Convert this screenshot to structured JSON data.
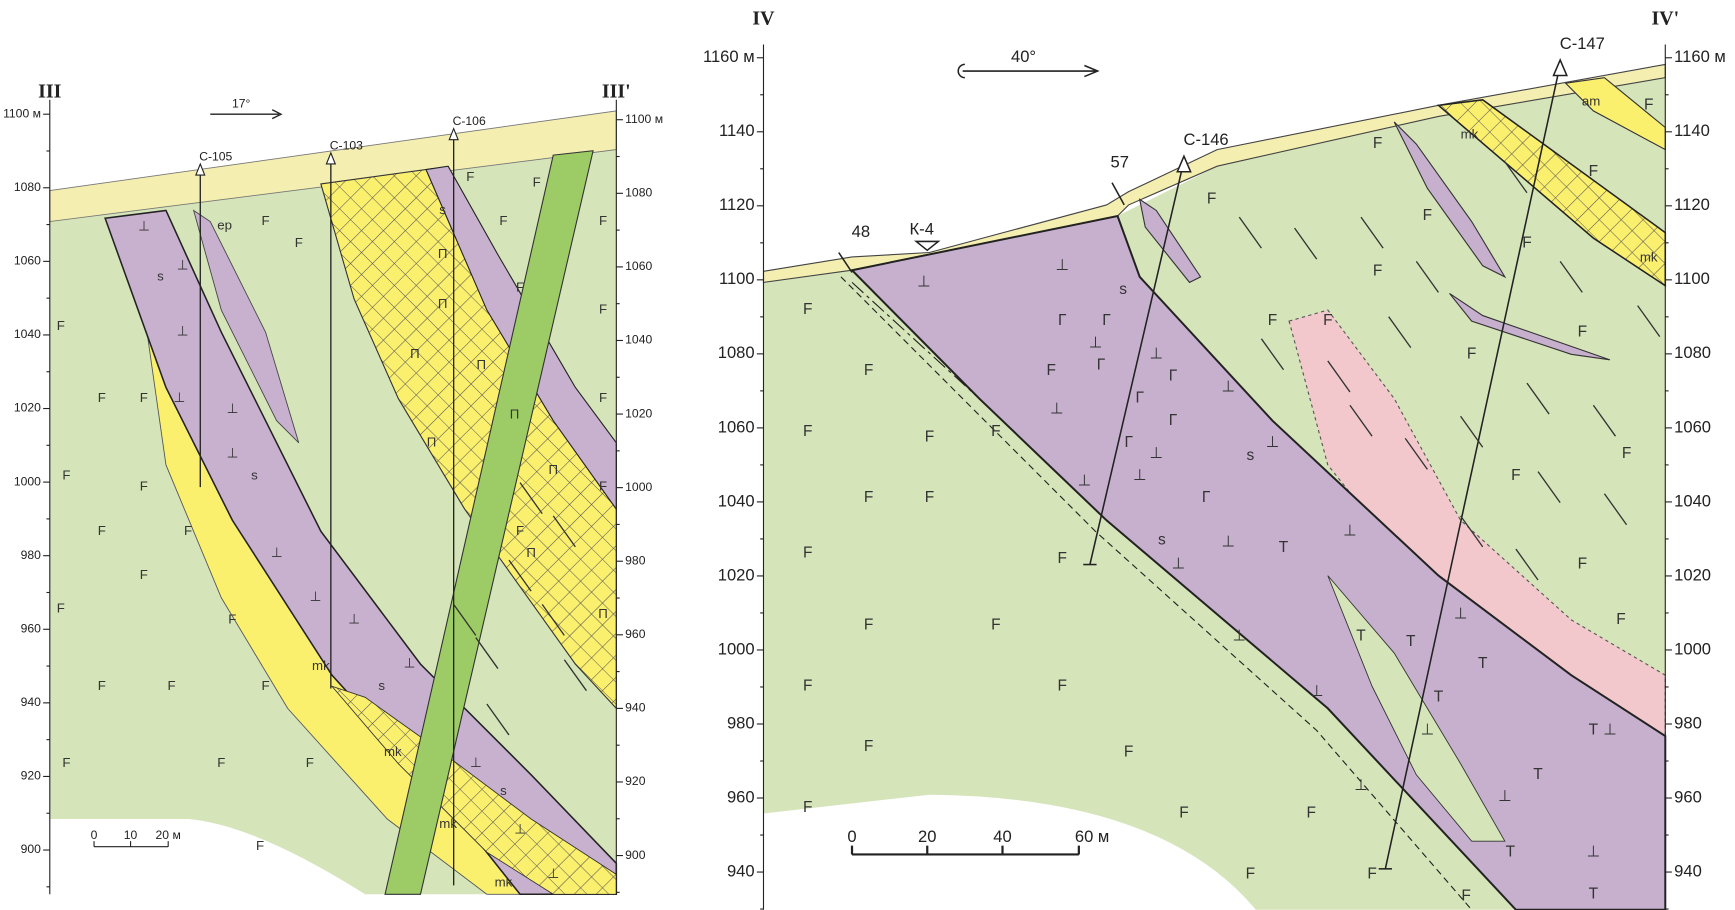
{
  "left_section": {
    "start_label": "III",
    "end_label": "III'",
    "direction": "17°",
    "left_axis": [
      "1100 м",
      "1080",
      "1060",
      "1040",
      "1020",
      "1000",
      "980",
      "960",
      "940",
      "920",
      "900"
    ],
    "right_axis": [
      "1100 м",
      "1080",
      "1060",
      "1040",
      "1020",
      "1000",
      "980",
      "960",
      "940",
      "920",
      "900"
    ],
    "boreholes": [
      "С-105",
      "С-103",
      "С-106"
    ],
    "scale_bar": [
      "0",
      "10",
      "20 м"
    ]
  },
  "right_section": {
    "start_label": "IV",
    "end_label": "IV'",
    "direction": "40°",
    "left_axis": [
      "1160 м",
      "1140",
      "1120",
      "1100",
      "1080",
      "1060",
      "1040",
      "1020",
      "1000",
      "980",
      "960",
      "940"
    ],
    "right_axis": [
      "1160 м",
      "1140",
      "1120",
      "1100",
      "1080",
      "1060",
      "1040",
      "1020",
      "1000",
      "980",
      "960",
      "940"
    ],
    "boreholes": [
      "С-146",
      "С-147"
    ],
    "points": [
      "48",
      "57",
      "К-4"
    ],
    "scale_bar": [
      "0",
      "20",
      "40",
      "60 м"
    ]
  },
  "symbols": {
    "F": "F",
    "s": "s",
    "perp": "⊥",
    "gamma": "Г",
    "tee": "T",
    "pi": "П",
    "ep": "ep",
    "mk": "mk",
    "am": "am"
  }
}
